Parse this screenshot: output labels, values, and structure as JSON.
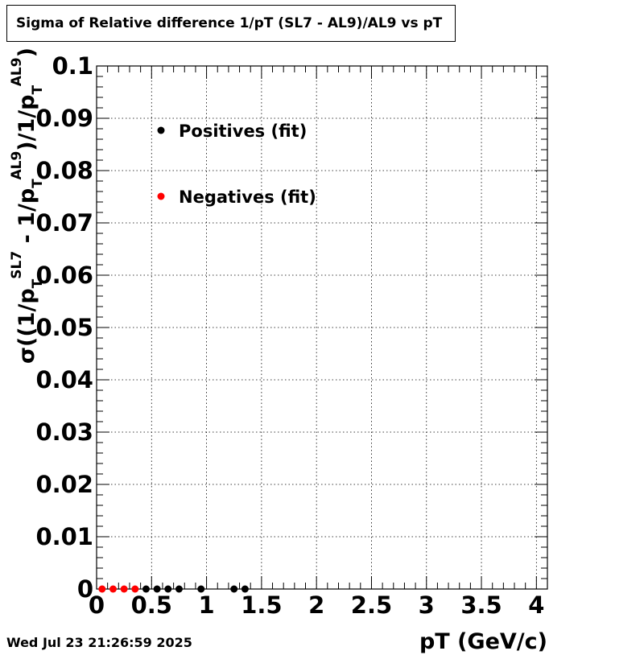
{
  "title": "Sigma of Relative difference 1/pT (SL7 - AL9)/AL9 vs pT",
  "timestamp": "Wed Jul 23 21:26:59 2025",
  "chart_data": {
    "type": "scatter",
    "xlabel": "pT (GeV/c)",
    "ylabel": "σ((1/p_T^SL7 - 1/p_T^AL9)/1/p_T^AL9)",
    "xlim": [
      0,
      4.1
    ],
    "ylim": [
      0,
      0.1
    ],
    "x_ticks": [
      "0",
      "0.5",
      "1",
      "1.5",
      "2",
      "2.5",
      "3",
      "3.5",
      "4"
    ],
    "y_ticks": [
      "0",
      "0.01",
      "0.02",
      "0.03",
      "0.04",
      "0.05",
      "0.06",
      "0.07",
      "0.08",
      "0.09",
      "0.1"
    ],
    "grid": true,
    "legend_position": "top-left",
    "series": [
      {
        "name": "Positives (fit)",
        "color": "#000000",
        "points": [
          {
            "x": 0.45,
            "y": 0.0
          },
          {
            "x": 0.55,
            "y": 0.0
          },
          {
            "x": 0.65,
            "y": 0.0
          },
          {
            "x": 0.75,
            "y": 0.0
          },
          {
            "x": 0.95,
            "y": 0.0
          },
          {
            "x": 1.25,
            "y": 0.0
          },
          {
            "x": 1.35,
            "y": 0.0
          }
        ]
      },
      {
        "name": "Negatives (fit)",
        "color": "#ff0000",
        "points": [
          {
            "x": 0.05,
            "y": 0.0
          },
          {
            "x": 0.15,
            "y": 0.0
          },
          {
            "x": 0.25,
            "y": 0.0
          },
          {
            "x": 0.35,
            "y": 0.0
          }
        ]
      }
    ]
  }
}
